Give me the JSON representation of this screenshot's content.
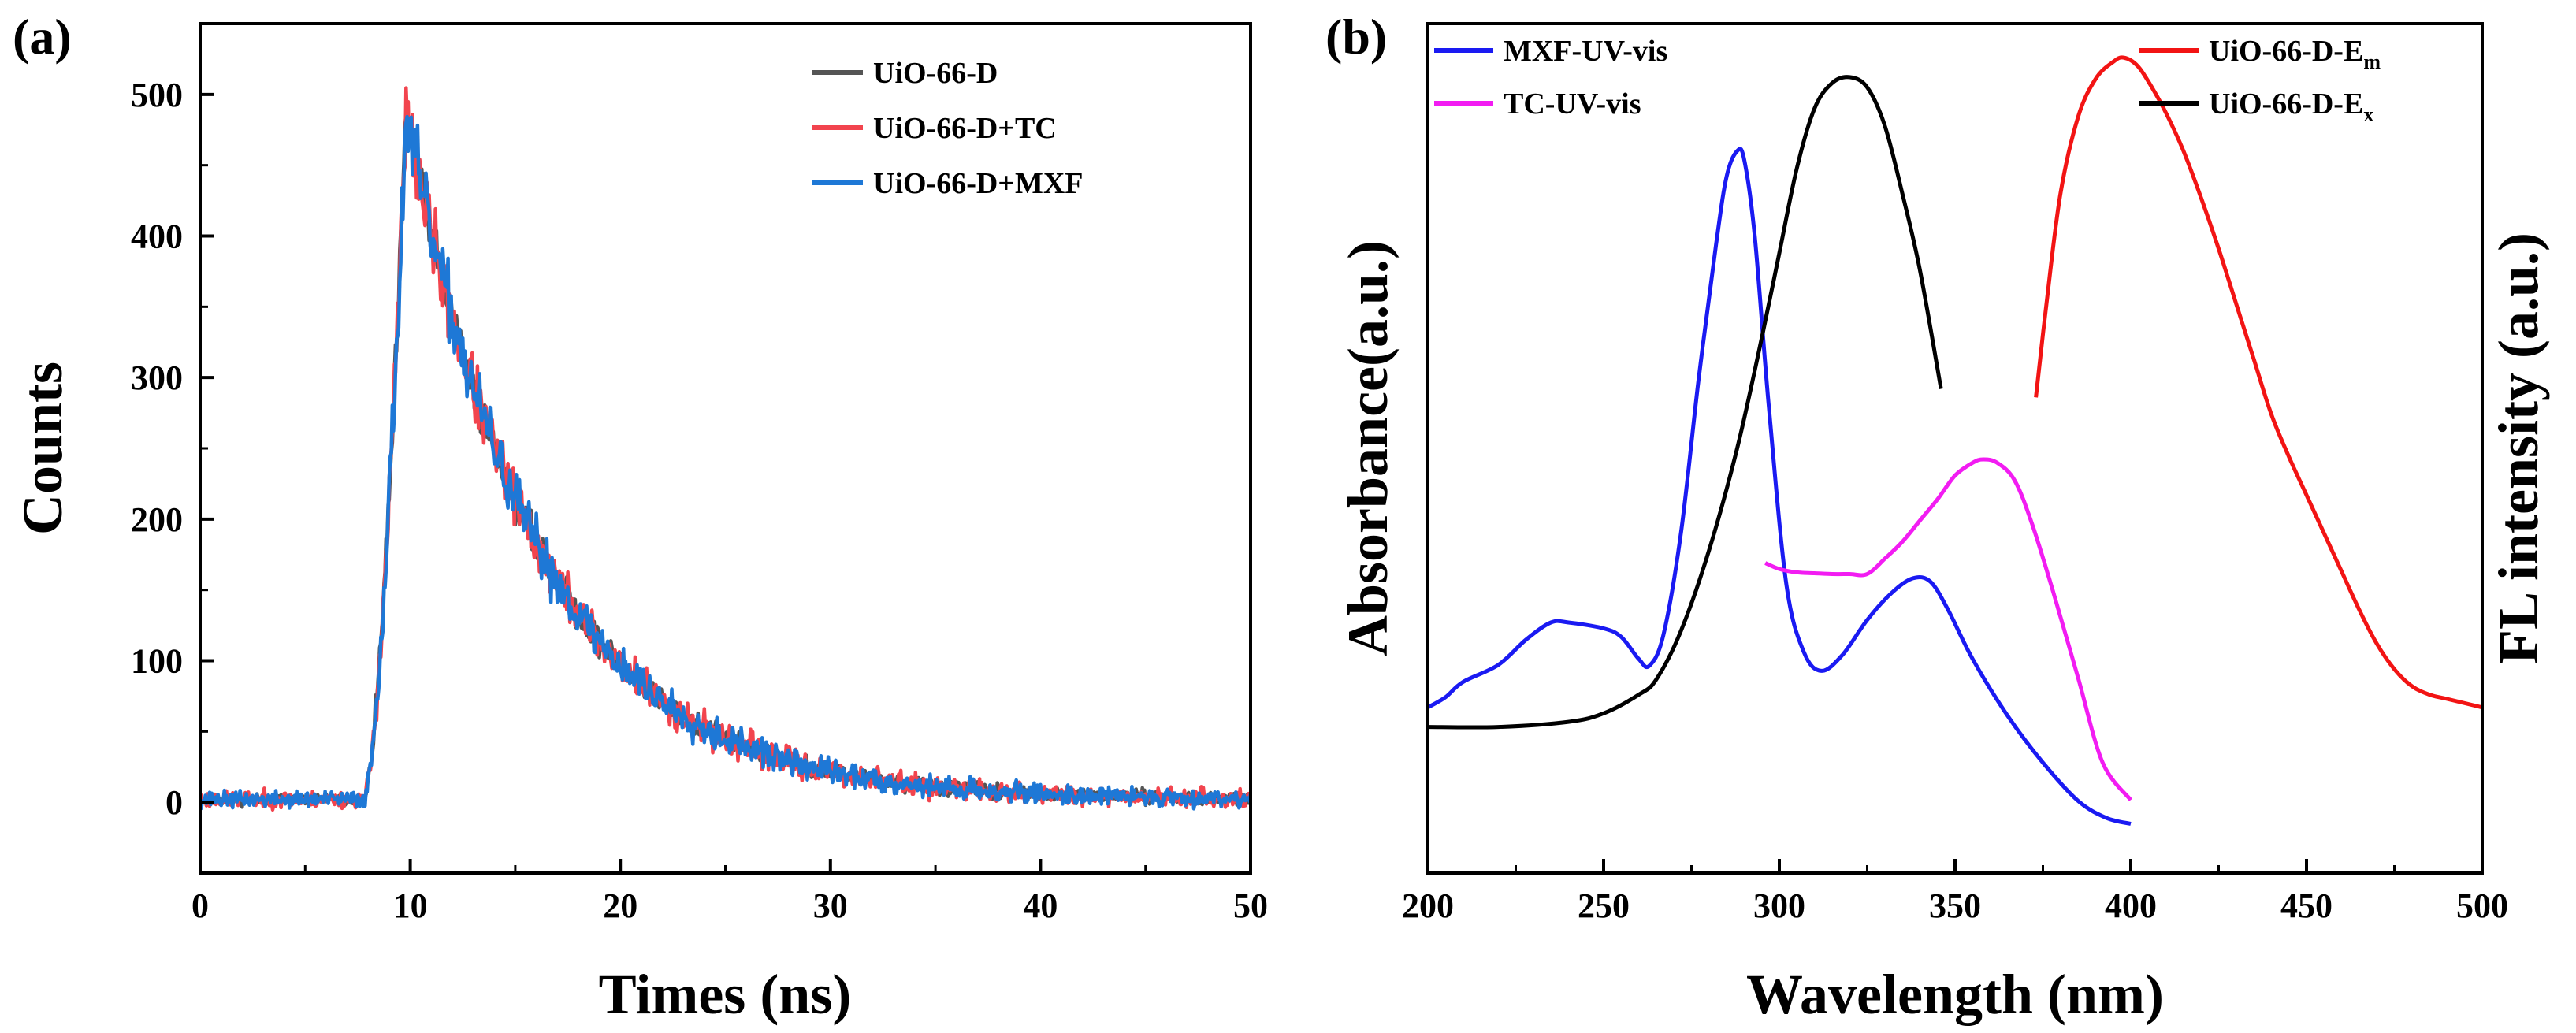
{
  "figure": {
    "panels": [
      "(a)",
      "(b)"
    ]
  },
  "chart_data": [
    {
      "id": "a",
      "panel_label": "(a)",
      "type": "line",
      "xlabel": "Times (ns)",
      "ylabel": "Counts",
      "xlim": [
        0,
        50
      ],
      "ylim": [
        -50,
        550
      ],
      "xticks": [
        0,
        10,
        20,
        30,
        40,
        50
      ],
      "yticks": [
        0,
        100,
        200,
        300,
        400,
        500
      ],
      "grid": false,
      "legend_position": "top-right",
      "decay": {
        "baseline": 2,
        "rise_start": 7.8,
        "peak_time": 9.8,
        "peak_value": 485,
        "tau": 6.3,
        "noise": 12
      },
      "series": [
        {
          "name": "UiO-66-D",
          "color": "#555555",
          "seed": 11,
          "noise_scale": 0.7
        },
        {
          "name": "UiO-66-D+TC",
          "color": "#f2444e",
          "seed": 23,
          "noise_scale": 1.0
        },
        {
          "name": "UiO-66-D+MXF",
          "color": "#1e78d6",
          "seed": 37,
          "noise_scale": 1.0
        }
      ]
    },
    {
      "id": "b",
      "panel_label": "(b)",
      "type": "line",
      "xlabel": "Wavelength (nm)",
      "ylabel_left": "Absorbance(a.u.)",
      "ylabel_right": "FL intensity (a.u.)",
      "xlim": [
        200,
        500
      ],
      "ylim": [
        0,
        100
      ],
      "xticks": [
        200,
        250,
        300,
        350,
        400,
        450,
        500
      ],
      "grid": false,
      "series": [
        {
          "name": "MXF-UV-vis",
          "color": "#1a1af2",
          "legend_position": "top-left",
          "x": [
            200,
            205,
            210,
            220,
            228,
            235,
            240,
            250,
            255,
            260,
            263,
            267,
            272,
            277,
            282,
            285,
            288,
            290,
            293,
            297,
            302,
            307,
            312,
            318,
            325,
            332,
            338,
            343,
            348,
            355,
            365,
            375,
            385,
            393,
            400
          ],
          "y": [
            19.5,
            20.7,
            22.5,
            24.5,
            27.5,
            29.5,
            29.5,
            28.8,
            27.8,
            25.2,
            24.4,
            28.0,
            40.0,
            58.0,
            74.0,
            82.0,
            85.0,
            84.0,
            75.0,
            55.0,
            34.0,
            26.0,
            23.8,
            25.7,
            29.8,
            33.0,
            34.7,
            34.3,
            31.0,
            25.2,
            18.5,
            13.0,
            8.5,
            6.5,
            5.8
          ]
        },
        {
          "name": "TC-UV-vis",
          "color": "#f21cf2",
          "legend_position": "top-left",
          "x": [
            296,
            300,
            305,
            310,
            315,
            320,
            325,
            330,
            335,
            340,
            345,
            350,
            355,
            358,
            362,
            367,
            372,
            378,
            385,
            392,
            400
          ],
          "y": [
            36.5,
            35.8,
            35.4,
            35.3,
            35.2,
            35.2,
            35.2,
            37.0,
            39.0,
            41.5,
            44.0,
            46.8,
            48.3,
            48.7,
            48.3,
            46.2,
            41.0,
            33.0,
            23.0,
            13.0,
            8.6
          ]
        },
        {
          "name": "UiO-66-D-Em",
          "color": "#f21414",
          "legend_position": "top-right",
          "x": [
            373,
            376,
            380,
            385,
            390,
            395,
            398,
            402,
            406,
            410,
            415,
            420,
            425,
            430,
            435,
            440,
            445,
            450,
            455,
            460,
            465,
            470,
            475,
            480,
            485,
            490,
            500
          ],
          "y": [
            56.0,
            67.0,
            80.0,
            89.0,
            93.5,
            95.5,
            96.0,
            95.0,
            92.5,
            89.5,
            85.0,
            79.5,
            73.5,
            67.0,
            60.5,
            54.0,
            49.0,
            44.5,
            40.0,
            35.5,
            31.0,
            27.0,
            24.0,
            22.0,
            21.0,
            20.5,
            19.5
          ]
        },
        {
          "name": "UiO-66-D-Ex",
          "color": "#000000",
          "legend_position": "top-right",
          "x": [
            200,
            220,
            240,
            250,
            260,
            265,
            272,
            280,
            288,
            295,
            300,
            305,
            310,
            315,
            320,
            325,
            330,
            335,
            340,
            346
          ],
          "y": [
            17.2,
            17.2,
            17.8,
            18.8,
            21.0,
            22.8,
            28.5,
            38.0,
            50.0,
            63.0,
            73.0,
            83.0,
            90.0,
            93.0,
            93.7,
            92.5,
            88.0,
            80.0,
            71.0,
            57.0
          ]
        }
      ]
    }
  ]
}
